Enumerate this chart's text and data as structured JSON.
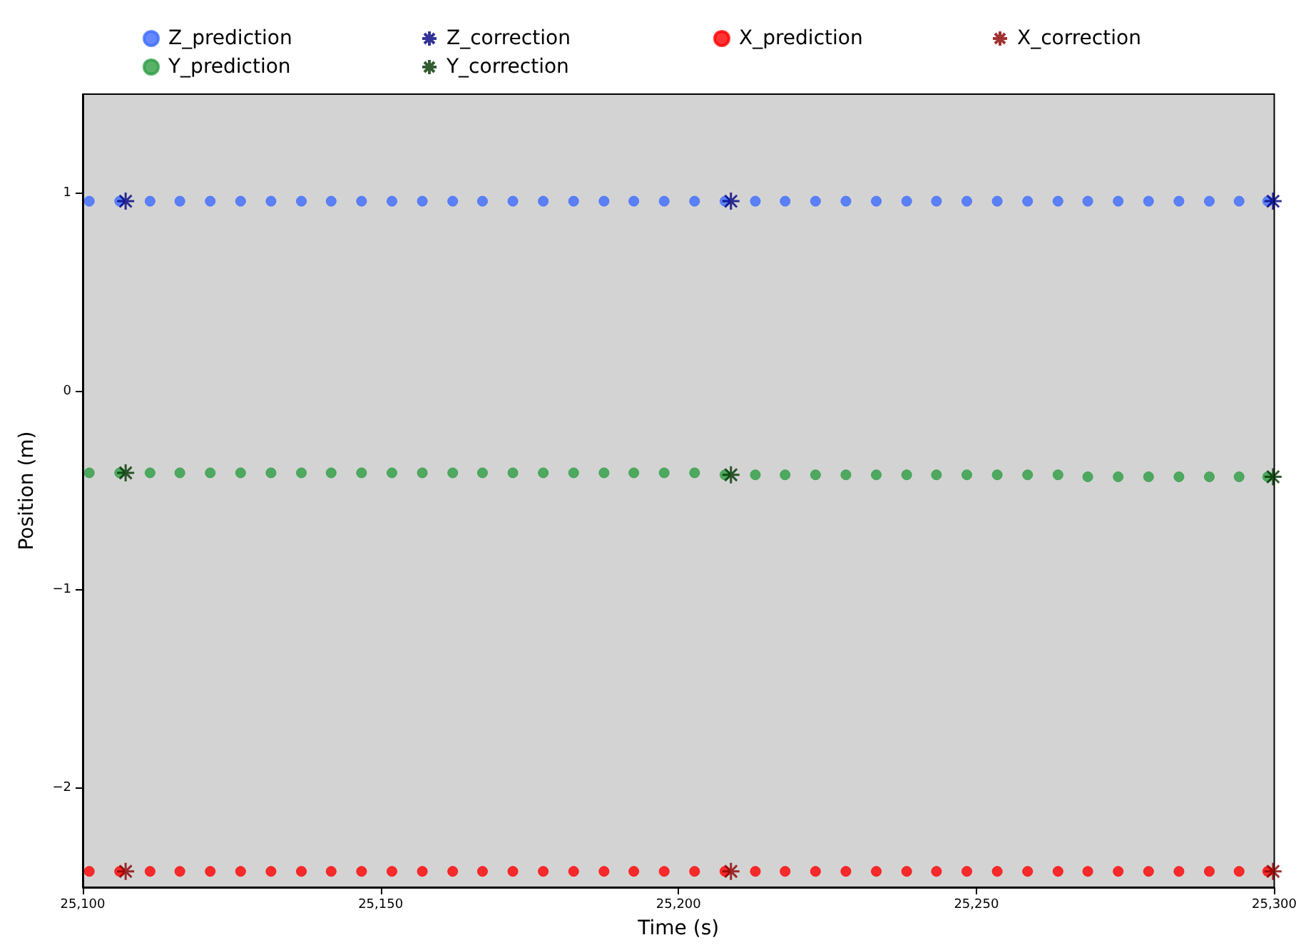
{
  "chart_data": {
    "type": "scatter",
    "xlabel": "Time (s)",
    "ylabel": "Position (m)",
    "xlim": [
      25100,
      25300
    ],
    "ylim": [
      -2.5,
      1.5
    ],
    "xticks": [
      {
        "value": 25100,
        "label": "25,100"
      },
      {
        "value": 25150,
        "label": "25,150"
      },
      {
        "value": 25200,
        "label": "25,200"
      },
      {
        "value": 25250,
        "label": "25,250"
      },
      {
        "value": 25300,
        "label": "25,300"
      }
    ],
    "yticks": [
      {
        "value": -2,
        "label": "−2"
      },
      {
        "value": -1,
        "label": "−1"
      },
      0,
      1
    ],
    "grid": false,
    "legend": "top",
    "series": [
      {
        "name": "Z_prediction",
        "color": "#3d6cff",
        "marker": "circle",
        "x": [
          25101.1,
          25106.2,
          25111.3,
          25116.3,
          25121.4,
          25126.5,
          25131.6,
          25136.7,
          25141.7,
          25146.8,
          25151.9,
          25157.0,
          25162.1,
          25167.1,
          25172.2,
          25177.3,
          25182.4,
          25187.5,
          25192.5,
          25197.6,
          25202.7,
          25207.8,
          25212.9,
          25217.9,
          25223.0,
          25228.1,
          25233.2,
          25238.3,
          25243.3,
          25248.4,
          25253.5,
          25258.6,
          25263.7,
          25268.7,
          25273.8,
          25278.9,
          25284.0,
          25289.1,
          25294.1,
          25298.9
        ],
        "values": [
          0.96,
          0.96,
          0.96,
          0.96,
          0.96,
          0.96,
          0.96,
          0.96,
          0.96,
          0.96,
          0.96,
          0.96,
          0.96,
          0.96,
          0.96,
          0.96,
          0.96,
          0.96,
          0.96,
          0.96,
          0.96,
          0.96,
          0.96,
          0.96,
          0.96,
          0.96,
          0.96,
          0.96,
          0.96,
          0.96,
          0.96,
          0.96,
          0.96,
          0.96,
          0.96,
          0.96,
          0.96,
          0.96,
          0.96,
          0.96
        ]
      },
      {
        "name": "Y_prediction",
        "color": "#2e9e44",
        "marker": "circle",
        "x": [
          25101.1,
          25106.2,
          25111.3,
          25116.3,
          25121.4,
          25126.5,
          25131.6,
          25136.7,
          25141.7,
          25146.8,
          25151.9,
          25157.0,
          25162.1,
          25167.1,
          25172.2,
          25177.3,
          25182.4,
          25187.5,
          25192.5,
          25197.6,
          25202.7,
          25207.8,
          25212.9,
          25217.9,
          25223.0,
          25228.1,
          25233.2,
          25238.3,
          25243.3,
          25248.4,
          25253.5,
          25258.6,
          25263.7,
          25268.7,
          25273.8,
          25278.9,
          25284.0,
          25289.1,
          25294.1,
          25298.9
        ],
        "values": [
          -0.41,
          -0.41,
          -0.41,
          -0.41,
          -0.41,
          -0.41,
          -0.41,
          -0.41,
          -0.41,
          -0.41,
          -0.41,
          -0.41,
          -0.41,
          -0.41,
          -0.41,
          -0.41,
          -0.41,
          -0.41,
          -0.41,
          -0.41,
          -0.41,
          -0.42,
          -0.42,
          -0.42,
          -0.42,
          -0.42,
          -0.42,
          -0.42,
          -0.42,
          -0.42,
          -0.42,
          -0.42,
          -0.42,
          -0.43,
          -0.43,
          -0.43,
          -0.43,
          -0.43,
          -0.43,
          -0.43
        ]
      },
      {
        "name": "Z_correction",
        "color": "#000080",
        "marker": "cross",
        "x": [
          25107.2,
          25208.8,
          25299.8
        ],
        "values": [
          0.96,
          0.96,
          0.96
        ]
      },
      {
        "name": "Y_correction",
        "color": "#003300",
        "marker": "cross",
        "x": [
          25107.2,
          25208.8,
          25299.8
        ],
        "values": [
          -0.41,
          -0.42,
          -0.43
        ]
      },
      {
        "name": "X_prediction",
        "color": "#ff0000",
        "marker": "circle",
        "x": [
          25101.1,
          25106.2,
          25111.3,
          25116.3,
          25121.4,
          25126.5,
          25131.6,
          25136.7,
          25141.7,
          25146.8,
          25151.9,
          25157.0,
          25162.1,
          25167.1,
          25172.2,
          25177.3,
          25182.4,
          25187.5,
          25192.5,
          25197.6,
          25202.7,
          25207.8,
          25212.9,
          25217.9,
          25223.0,
          25228.1,
          25233.2,
          25238.3,
          25243.3,
          25248.4,
          25253.5,
          25258.6,
          25263.7,
          25268.7,
          25273.8,
          25278.9,
          25284.0,
          25289.1,
          25294.1,
          25298.9
        ],
        "values": [
          -2.42,
          -2.42,
          -2.42,
          -2.42,
          -2.42,
          -2.42,
          -2.42,
          -2.42,
          -2.42,
          -2.42,
          -2.42,
          -2.42,
          -2.42,
          -2.42,
          -2.42,
          -2.42,
          -2.42,
          -2.42,
          -2.42,
          -2.42,
          -2.42,
          -2.42,
          -2.42,
          -2.42,
          -2.42,
          -2.42,
          -2.42,
          -2.42,
          -2.42,
          -2.42,
          -2.42,
          -2.42,
          -2.42,
          -2.42,
          -2.42,
          -2.42,
          -2.42,
          -2.42,
          -2.42,
          -2.42
        ]
      },
      {
        "name": "X_correction",
        "color": "#8b0000",
        "marker": "cross",
        "x": [
          25107.2,
          25208.8,
          25299.8
        ],
        "values": [
          -2.42,
          -2.42,
          -2.42
        ]
      }
    ]
  }
}
